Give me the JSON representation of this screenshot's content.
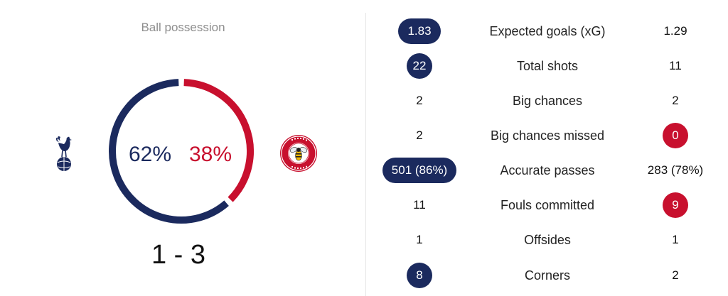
{
  "possession": {
    "title": "Ball possession",
    "home_pct_label": "62%",
    "away_pct_label": "38%",
    "home_value": 62,
    "away_value": 38
  },
  "colors": {
    "home": "#1b2a5e",
    "away": "#c8102e"
  },
  "score": "1 - 3",
  "teams": {
    "home_crest_icon": "tottenham-crest-icon",
    "away_crest_icon": "brentford-crest-icon"
  },
  "stats": [
    {
      "label": "Expected goals (xG)",
      "home": "1.83",
      "away": "1.29",
      "highlight": "home"
    },
    {
      "label": "Total shots",
      "home": "22",
      "away": "11",
      "highlight": "home"
    },
    {
      "label": "Big chances",
      "home": "2",
      "away": "2",
      "highlight": "none"
    },
    {
      "label": "Big chances missed",
      "home": "2",
      "away": "0",
      "highlight": "away"
    },
    {
      "label": "Accurate passes",
      "home": "501 (86%)",
      "away": "283 (78%)",
      "highlight": "home"
    },
    {
      "label": "Fouls committed",
      "home": "11",
      "away": "9",
      "highlight": "away"
    },
    {
      "label": "Offsides",
      "home": "1",
      "away": "1",
      "highlight": "none"
    },
    {
      "label": "Corners",
      "home": "8",
      "away": "2",
      "highlight": "home"
    }
  ]
}
